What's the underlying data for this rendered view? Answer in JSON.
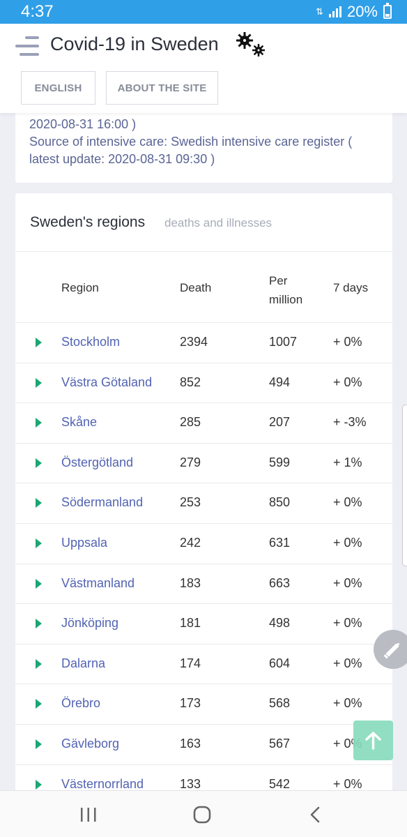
{
  "status_bar": {
    "time": "4:37",
    "battery": "20%"
  },
  "header": {
    "title": "Covid-19 in Sweden",
    "buttons": {
      "english": "ENGLISH",
      "about": "ABOUT THE SITE"
    }
  },
  "sources": {
    "line1": "2020-08-31 16:00 )",
    "line2_prefix": "Source of intensive care: ",
    "line2_link": "Swedish intensive care register",
    "line2_suffix": " (",
    "line3": "latest update: 2020-08-31 09:30 )"
  },
  "regions": {
    "title": "Sweden's regions",
    "subtitle": "deaths and illnesses",
    "columns": {
      "region": "Region",
      "death": "Death",
      "per_million_1": "Per",
      "per_million_2": "million",
      "days7": "7 days"
    },
    "rows": [
      {
        "region": "Stockholm",
        "death": "2394",
        "per_million": "1007",
        "days7": "+ 0%"
      },
      {
        "region": "Västra Götaland",
        "death": "852",
        "per_million": "494",
        "days7": "+ 0%"
      },
      {
        "region": "Skåne",
        "death": "285",
        "per_million": "207",
        "days7": "+ -3%"
      },
      {
        "region": "Östergötland",
        "death": "279",
        "per_million": "599",
        "days7": "+ 1%"
      },
      {
        "region": "Södermanland",
        "death": "253",
        "per_million": "850",
        "days7": "+ 0%"
      },
      {
        "region": "Uppsala",
        "death": "242",
        "per_million": "631",
        "days7": "+ 0%"
      },
      {
        "region": "Västmanland",
        "death": "183",
        "per_million": "663",
        "days7": "+ 0%"
      },
      {
        "region": "Jönköping",
        "death": "181",
        "per_million": "498",
        "days7": "+ 0%"
      },
      {
        "region": "Dalarna",
        "death": "174",
        "per_million": "604",
        "days7": "+ 0%"
      },
      {
        "region": "Örebro",
        "death": "173",
        "per_million": "568",
        "days7": "+ 0%"
      },
      {
        "region": "Gävleborg",
        "death": "163",
        "per_million": "567",
        "days7": "+ 0%"
      },
      {
        "region": "Västernorrland",
        "death": "133",
        "per_million": "542",
        "days7": "+ 0%"
      }
    ]
  },
  "icons": {
    "menu": "hamburger-menu-icon",
    "logo": "virus-icon",
    "expand": "triangle-right-icon",
    "edit": "pencil-icon",
    "scroll_top": "arrow-up-icon",
    "nav_recents": "recents-icon",
    "nav_home": "home-icon",
    "nav_back": "back-icon"
  },
  "colors": {
    "status_bar": "#2f9fe8",
    "link": "#5263b3",
    "expand_arrow": "#1ba672",
    "scroll_top_button": "#86dbbd"
  }
}
